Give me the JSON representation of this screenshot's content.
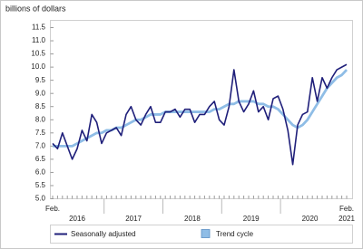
{
  "chart_data": {
    "type": "line",
    "y_label": "billions of dollars",
    "categories": [
      "Feb.",
      null,
      null,
      null,
      null,
      null,
      null,
      null,
      null,
      null,
      null,
      null,
      null,
      null,
      null,
      null,
      null,
      null,
      null,
      null,
      null,
      null,
      null,
      null,
      null,
      null,
      null,
      null,
      null,
      null,
      null,
      null,
      null,
      null,
      null,
      null,
      null,
      null,
      null,
      null,
      null,
      null,
      null,
      null,
      null,
      null,
      null,
      null,
      null,
      null,
      null,
      null,
      null,
      null,
      null,
      null,
      null,
      null,
      null,
      null,
      "Feb."
    ],
    "year_labels": [
      "2016",
      "2017",
      "2018",
      "2019",
      "2020",
      "2021"
    ],
    "series": [
      {
        "name": "Seasonally adjusted",
        "color": "#1f1f7a",
        "values": [
          7.1,
          6.9,
          7.5,
          7.0,
          6.5,
          6.9,
          7.6,
          7.2,
          8.2,
          7.9,
          7.1,
          7.5,
          7.6,
          7.7,
          7.4,
          8.2,
          8.5,
          8.0,
          7.8,
          8.2,
          8.5,
          7.9,
          7.9,
          8.3,
          8.3,
          8.4,
          8.1,
          8.4,
          8.4,
          7.9,
          8.2,
          8.2,
          8.5,
          8.7,
          8.0,
          7.8,
          8.5,
          9.9,
          8.7,
          8.3,
          8.6,
          9.1,
          8.3,
          8.5,
          8.0,
          8.8,
          8.9,
          8.4,
          7.6,
          6.3,
          7.8,
          8.2,
          8.3,
          9.6,
          8.7,
          9.6,
          9.2,
          9.6,
          9.9,
          10.0,
          10.1
        ]
      },
      {
        "name": "Trend cycle",
        "color": "#8fbde6",
        "values": [
          7.0,
          7.0,
          7.0,
          7.0,
          7.0,
          7.1,
          7.2,
          7.3,
          7.4,
          7.5,
          7.5,
          7.6,
          7.6,
          7.7,
          7.7,
          7.8,
          7.9,
          8.0,
          8.0,
          8.1,
          8.2,
          8.2,
          8.2,
          8.3,
          8.3,
          8.3,
          8.3,
          8.3,
          8.3,
          8.3,
          8.3,
          8.3,
          8.3,
          8.4,
          8.4,
          8.5,
          8.6,
          8.6,
          8.7,
          8.7,
          8.7,
          8.7,
          8.6,
          8.6,
          8.5,
          8.5,
          8.4,
          8.2,
          8.0,
          7.8,
          7.7,
          7.8,
          8.0,
          8.3,
          8.6,
          8.9,
          9.2,
          9.4,
          9.6,
          9.7,
          9.9
        ]
      }
    ],
    "ylim": [
      5.0,
      11.5
    ],
    "yticks": [
      {
        "value": 5,
        "label": "5.0"
      },
      5.5,
      {
        "value": 6,
        "label": "6.0"
      },
      6.5,
      {
        "value": 7,
        "label": "7.0"
      },
      7.5,
      {
        "value": 8,
        "label": "8.0"
      },
      8.5,
      {
        "value": 9,
        "label": "9.0"
      },
      9.5,
      {
        "value": 10,
        "label": "10.0"
      },
      10.5,
      {
        "value": 11,
        "label": "11.0"
      },
      11.5
    ],
    "grid": false
  }
}
